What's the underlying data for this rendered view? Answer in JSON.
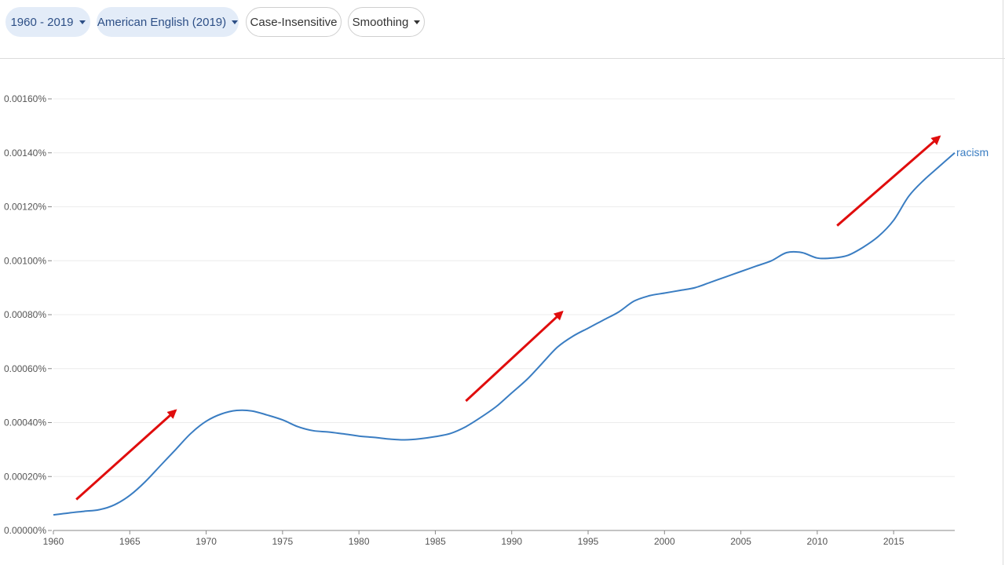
{
  "toolbar": {
    "year_range": "1960 - 2019",
    "corpus": "American English (2019)",
    "case_option": "Case-Insensitive",
    "smoothing": "Smoothing"
  },
  "colors": {
    "line": "#3a7dc2",
    "annotation_arrows": "#e00d0d",
    "chip_bg": "#e3ecf8"
  },
  "chart_data": {
    "type": "line",
    "title": "",
    "xlabel": "",
    "ylabel": "",
    "xlim": [
      1960,
      2019
    ],
    "ylim": [
      0,
      0.0016
    ],
    "y_ticks": [
      0,
      0.0002,
      0.0004,
      0.0006,
      0.0008,
      0.001,
      0.0012,
      0.0014,
      0.0016
    ],
    "y_tick_labels": [
      "0.00000%",
      "0.00020%",
      "0.00040%",
      "0.00060%",
      "0.00080%",
      "0.00100%",
      "0.00120%",
      "0.00140%",
      "0.00160%"
    ],
    "x_ticks": [
      1960,
      1965,
      1970,
      1975,
      1980,
      1985,
      1990,
      1995,
      2000,
      2005,
      2010,
      2015
    ],
    "x_tick_labels": [
      "1960",
      "1965",
      "1970",
      "1975",
      "1980",
      "1985",
      "1990",
      "1995",
      "2000",
      "2005",
      "2010",
      "2015"
    ],
    "grid": true,
    "series": [
      {
        "name": "racism",
        "x": [
          1960,
          1961,
          1962,
          1963,
          1964,
          1965,
          1966,
          1967,
          1968,
          1969,
          1970,
          1971,
          1972,
          1973,
          1974,
          1975,
          1976,
          1977,
          1978,
          1979,
          1980,
          1981,
          1982,
          1983,
          1984,
          1985,
          1986,
          1987,
          1988,
          1989,
          1990,
          1991,
          1992,
          1993,
          1994,
          1995,
          1996,
          1997,
          1998,
          1999,
          2000,
          2001,
          2002,
          2003,
          2004,
          2005,
          2006,
          2007,
          2008,
          2009,
          2010,
          2011,
          2012,
          2013,
          2014,
          2015,
          2016,
          2017,
          2018,
          2019
        ],
        "y": [
          5.8e-05,
          6.5e-05,
          7.1e-05,
          7.7e-05,
          9.5e-05,
          0.00013,
          0.00018,
          0.00024,
          0.0003,
          0.00036,
          0.000405,
          0.000432,
          0.000445,
          0.000443,
          0.000428,
          0.00041,
          0.000385,
          0.00037,
          0.000365,
          0.000358,
          0.00035,
          0.000345,
          0.000339,
          0.000336,
          0.00034,
          0.000348,
          0.00036,
          0.000385,
          0.00042,
          0.00046,
          0.00051,
          0.00056,
          0.00062,
          0.00068,
          0.00072,
          0.00075,
          0.00078,
          0.00081,
          0.00085,
          0.00087,
          0.00088,
          0.00089,
          0.0009,
          0.00092,
          0.00094,
          0.00096,
          0.00098,
          0.001,
          0.00103,
          0.00103,
          0.00101,
          0.00101,
          0.00102,
          0.00105,
          0.00109,
          0.00115,
          0.00124,
          0.0013,
          0.00135,
          0.0014
        ]
      }
    ],
    "annotations": [
      {
        "type": "arrow",
        "from": [
          1961.5,
          0.000115
        ],
        "to": [
          1968,
          0.000445
        ]
      },
      {
        "type": "arrow",
        "from": [
          1987,
          0.00048
        ],
        "to": [
          1993.3,
          0.00081
        ]
      },
      {
        "type": "arrow",
        "from": [
          2011.3,
          0.00113
        ],
        "to": [
          2018,
          0.00146
        ]
      }
    ]
  }
}
